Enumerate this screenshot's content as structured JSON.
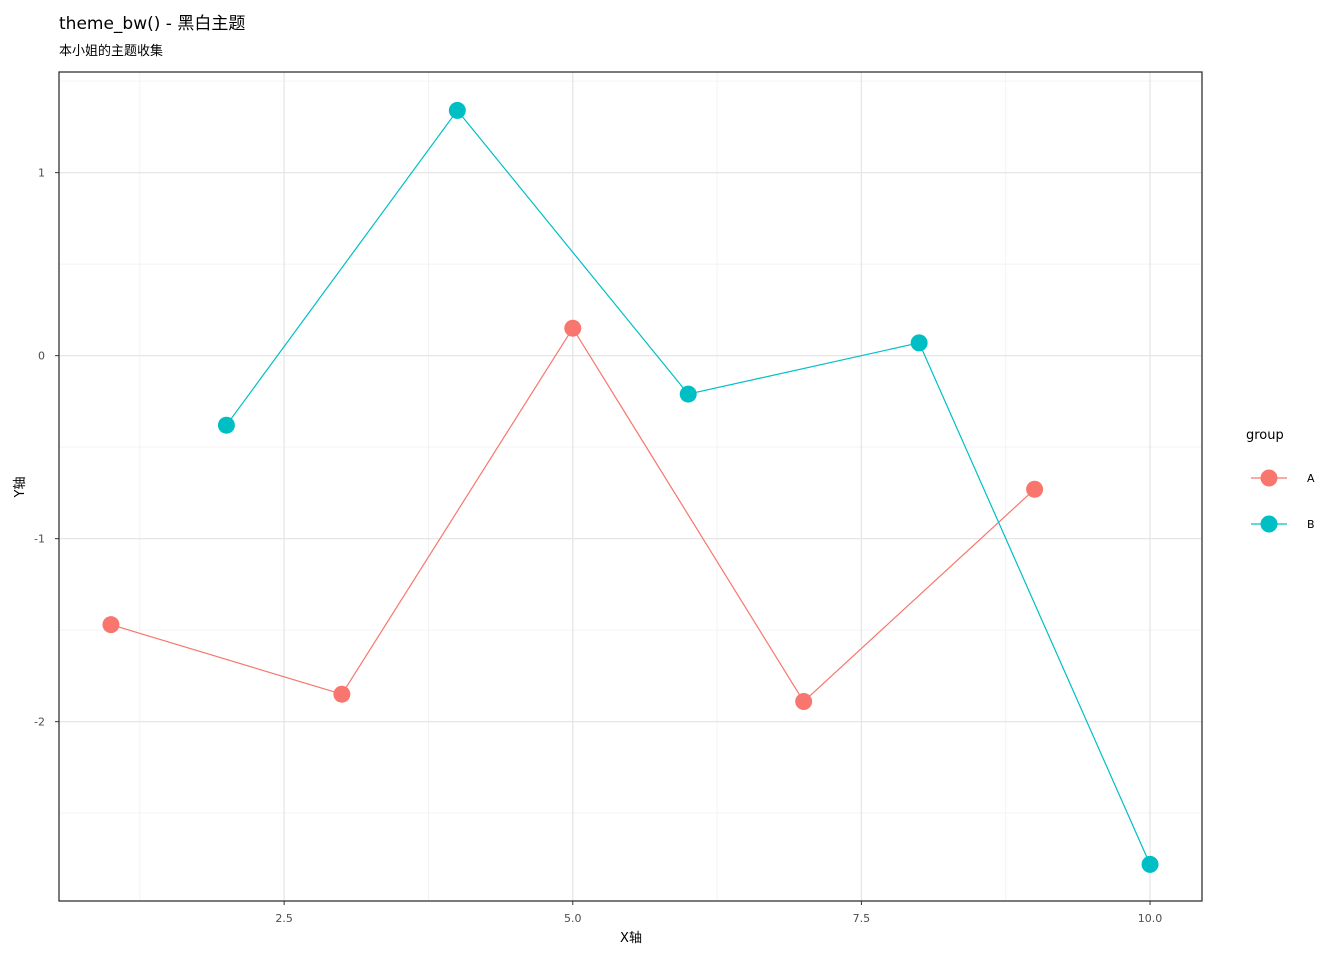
{
  "chart_data": {
    "type": "line",
    "title": "theme_bw() - 黑白主题",
    "subtitle": "本小姐的主题收集",
    "xlabel": "X轴",
    "ylabel": "Y轴",
    "xlim": [
      0.55,
      10.45
    ],
    "ylim": [
      -2.98,
      1.55
    ],
    "x_ticks": [
      2.5,
      5.0,
      7.5,
      10.0
    ],
    "x_tick_labels": [
      "2.5",
      "5.0",
      "7.5",
      "10.0"
    ],
    "y_ticks": [
      -2,
      -1,
      0,
      1
    ],
    "y_tick_labels": [
      "-2",
      "-1",
      "0",
      "1"
    ],
    "grid": true,
    "legend_title": "group",
    "legend_position": "right",
    "series": [
      {
        "name": "A",
        "color": "#F8766D",
        "x": [
          1,
          3,
          5,
          7,
          9
        ],
        "y": [
          -1.47,
          -1.85,
          0.15,
          -1.89,
          -0.73
        ]
      },
      {
        "name": "B",
        "color": "#00BFC4",
        "x": [
          2,
          4,
          6,
          8,
          10
        ],
        "y": [
          -0.38,
          1.34,
          -0.21,
          0.07,
          -2.78
        ]
      }
    ]
  }
}
